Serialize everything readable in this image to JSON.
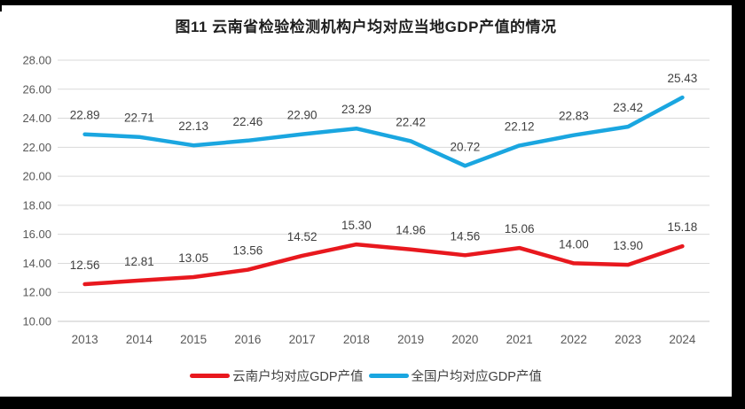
{
  "title": "图11 云南省检验检测机构户均对应当地GDP产值的情况",
  "chart_data": {
    "type": "line",
    "x": [
      "2013",
      "2014",
      "2015",
      "2016",
      "2017",
      "2018",
      "2019",
      "2020",
      "2021",
      "2022",
      "2023",
      "2024"
    ],
    "series": [
      {
        "name": "云南户均对应GDP产值",
        "color": "#e8181e",
        "values": [
          12.56,
          12.81,
          13.05,
          13.56,
          14.52,
          15.3,
          14.96,
          14.56,
          15.06,
          14.0,
          13.9,
          15.18
        ],
        "labels": [
          "12.56",
          "12.81",
          "13.05",
          "13.56",
          "14.52",
          "15.30",
          "14.96",
          "14.56",
          "15.06",
          "14.00",
          "13.90",
          "15.18"
        ]
      },
      {
        "name": "全国户均对应GDP产值",
        "color": "#1aa6e0",
        "values": [
          22.89,
          22.71,
          22.13,
          22.46,
          22.9,
          23.29,
          22.42,
          20.72,
          22.12,
          22.83,
          23.42,
          25.43
        ],
        "labels": [
          "22.89",
          "22.71",
          "22.13",
          "22.46",
          "22.90",
          "23.29",
          "22.42",
          "20.72",
          "22.12",
          "22.83",
          "23.42",
          "25.43"
        ]
      }
    ],
    "ylim": [
      10,
      28
    ],
    "yticks": [
      10,
      12,
      14,
      16,
      18,
      20,
      22,
      24,
      26,
      28
    ],
    "ytick_labels": [
      "10.00",
      "12.00",
      "14.00",
      "16.00",
      "18.00",
      "20.00",
      "22.00",
      "24.00",
      "26.00",
      "28.00"
    ],
    "grid": true,
    "data_labels": true,
    "legend_position": "bottom",
    "xlabel": "",
    "ylabel": ""
  },
  "colors": {
    "grid": "#d9d9d9",
    "baseline": "#c6c6c6",
    "axis_text": "#595959",
    "data_label_text": "#404040",
    "frame": "#000000"
  }
}
